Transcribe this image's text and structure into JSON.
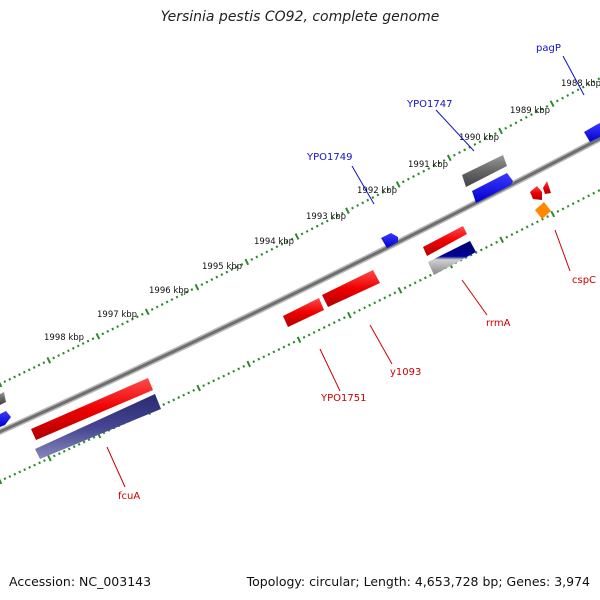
{
  "title": "Yersinia pestis CO92, complete genome",
  "footer": {
    "accession": "Accession: NC_003143",
    "summary": "Topology: circular; Length: 4,653,728 bp; Genes: 3,974"
  },
  "kbp_labels": [
    "1988 kbp",
    "1989 kbp",
    "1990 kbp",
    "1991 kbp",
    "1992 kbp",
    "1993 kbp",
    "1994 kbp",
    "1995 kbp",
    "1996 kbp",
    "1997 kbp",
    "1998 kbp"
  ],
  "gene_labels": {
    "pagP": "pagP",
    "YPO1747": "YPO1747",
    "YPO1749": "YPO1749",
    "cspC": "cspC",
    "rrmA": "rrmA",
    "y1093": "y1093",
    "YPO1751": "YPO1751",
    "fcuA": "fcuA"
  },
  "colors": {
    "forward_label": "#1010cc",
    "reverse_label": "#cc0000",
    "tick": "#2a8a2a",
    "backbone": "#777777",
    "feature_red": "#ee0000",
    "feature_blue": "#0000ee",
    "feature_navy": "#3a3a8a",
    "feature_grey": "#666666",
    "feature_orange": "#ff8800"
  }
}
